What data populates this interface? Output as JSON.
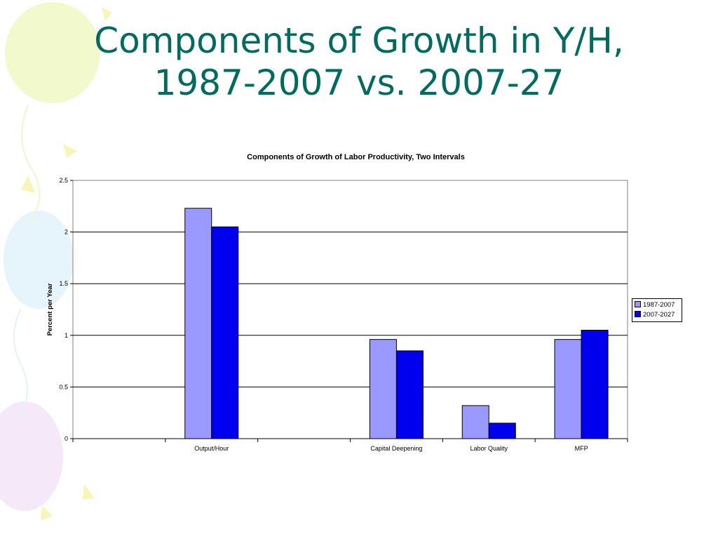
{
  "slide": {
    "title_line1": "Components of Growth in Y/H,",
    "title_line2": "1987-2007 vs. 2007-27"
  },
  "colors": {
    "title": "#006b5e",
    "series_1987_2007": "#9999ff",
    "series_2007_2027": "#0000ee",
    "gridline": "#000000"
  },
  "chart_data": {
    "type": "bar",
    "title": "Components of Growth of Labor Productivity, Two Intervals",
    "xlabel": "",
    "ylabel": "Percent per Year",
    "categories": [
      "",
      "Output/Hour",
      "",
      "Capital Deepening",
      "Labor Quality",
      "MFP"
    ],
    "series": [
      {
        "name": "1987-2007",
        "values": [
          null,
          2.23,
          null,
          0.96,
          0.32,
          0.96
        ]
      },
      {
        "name": "2007-2027",
        "values": [
          null,
          2.05,
          null,
          0.85,
          0.15,
          1.05
        ]
      }
    ],
    "ylim": [
      0,
      2.5
    ],
    "yticks": [
      "0",
      "0.5",
      "1",
      "1.5",
      "2",
      "2.5"
    ],
    "grid": true,
    "legend_position": "right"
  }
}
